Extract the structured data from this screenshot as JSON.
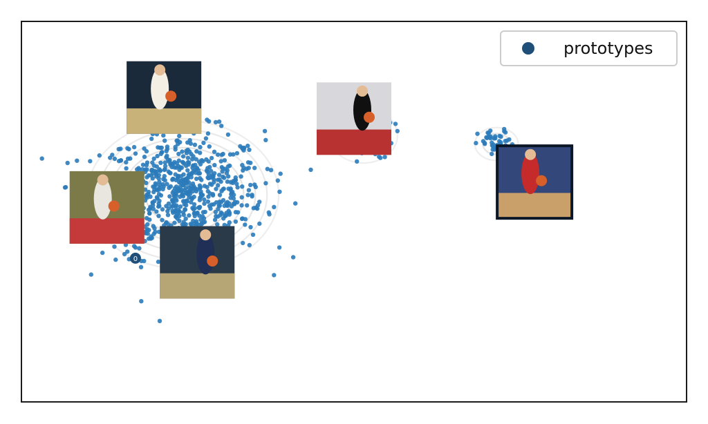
{
  "chart_data": {
    "type": "scatter",
    "title": "",
    "xlabel": "",
    "ylabel": "",
    "axes_visible": false,
    "grid": false,
    "legend": {
      "placement": "top-right",
      "entries": [
        {
          "label": "prototypes",
          "color": "#1f4e79"
        }
      ]
    },
    "colors": {
      "points": "#2b7bba",
      "prototype_marker": "#1f4e79",
      "contours": "#d9d9d9",
      "frame": "#1a1a1a"
    },
    "series": [
      {
        "name": "prototypes",
        "values": [
          [
            -1.6,
            -0.6
          ],
          [
            6.2,
            2.0
          ]
        ]
      }
    ],
    "prototype_label": "0",
    "point_clusters": [
      {
        "center": [
          -0.6,
          0.9
        ],
        "spread": [
          1.55,
          1.35
        ],
        "count": 760
      },
      {
        "center": [
          3.2,
          2.3
        ],
        "spread": [
          0.55,
          0.5
        ],
        "count": 90
      },
      {
        "center": [
          6.0,
          2.1
        ],
        "spread": [
          0.35,
          0.3
        ],
        "count": 45
      }
    ],
    "density_contours": {
      "levels": 6,
      "shown": true
    },
    "thumbnails": [
      {
        "description": "player-in-white-jersey-34",
        "x": -1.0,
        "y": 3.2,
        "highlighted": false
      },
      {
        "description": "woman-holding-basketball",
        "x": 3.0,
        "y": 2.7,
        "highlighted": false
      },
      {
        "description": "players-in-red-jerseys-15",
        "x": -2.2,
        "y": 0.6,
        "highlighted": false
      },
      {
        "description": "player-shooting-layup",
        "x": -0.3,
        "y": -0.7,
        "highlighted": false
      },
      {
        "description": "player-in-red-jersey-3",
        "x": 6.8,
        "y": 1.2,
        "highlighted": true
      }
    ],
    "xlim": [
      -4,
      10
    ],
    "ylim": [
      -4,
      5
    ]
  }
}
